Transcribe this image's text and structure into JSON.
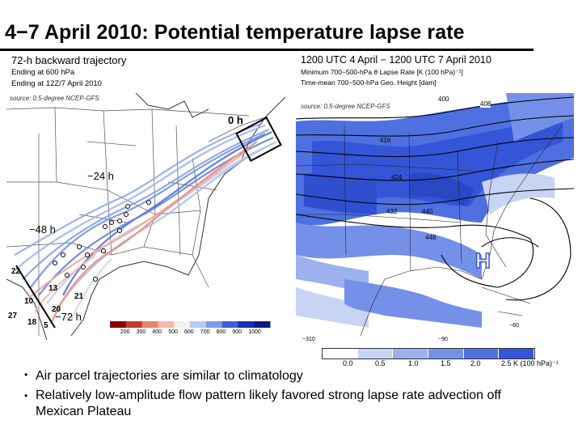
{
  "slide": {
    "title": "4−7 April 2010: Potential temperature lapse rate"
  },
  "left_panel": {
    "heading": "72-h backward trajectory",
    "subtitle_1": "Ending at 600 hPa",
    "subtitle_2": "Ending at 12Z/7 April 2010",
    "source": "source: 0.5-degree NCEP-GFS",
    "time_labels": [
      "0 h",
      "−24 h",
      "−48 h",
      "−72 h"
    ],
    "colorbar_ticks": [
      "200",
      "300",
      "400",
      "500",
      "600",
      "700",
      "800",
      "900",
      "1000"
    ],
    "colorbar_colors": [
      "#8b0000",
      "#c0392b",
      "#e8836b",
      "#f4b9a8",
      "#f2f2f2",
      "#b8c8f0",
      "#7d9be8",
      "#3f5fd8",
      "#1a2fb0",
      "#0a1a80"
    ],
    "point_labels": [
      "22",
      "13",
      "10",
      "21",
      "20",
      "18",
      "5",
      "27"
    ]
  },
  "right_panel": {
    "heading": "1200 UTC 4 April − 1200 UTC 7 April 2010",
    "subtitle_1": "Minimum 700−500-hPa θ Lapse Rate [K (100 hPa)⁻¹]",
    "subtitle_2": "Time-mean 700−500-hPa Geo. Height [dam]",
    "source": "source: 0.5-degree NCEP-GFS",
    "contour_labels": [
      "400",
      "408",
      "416",
      "424",
      "432",
      "440",
      "448",
      "−310",
      "−90",
      "−60"
    ],
    "high_label": "H",
    "colorbar_ticks": [
      "0.0",
      "0.5",
      "1.0",
      "1.5",
      "2.0",
      "2.5 K (100 hPa)⁻¹"
    ],
    "colorbar_colors": [
      "#ffffff",
      "#c8d4f4",
      "#9db1ee",
      "#7590e8",
      "#4f70e0",
      "#3555d8"
    ]
  },
  "bullets": [
    "Air parcel trajectories are similar to climatology",
    "Relatively low-amplitude flow pattern likely favored strong lapse rate advection off Mexican Plateau"
  ]
}
